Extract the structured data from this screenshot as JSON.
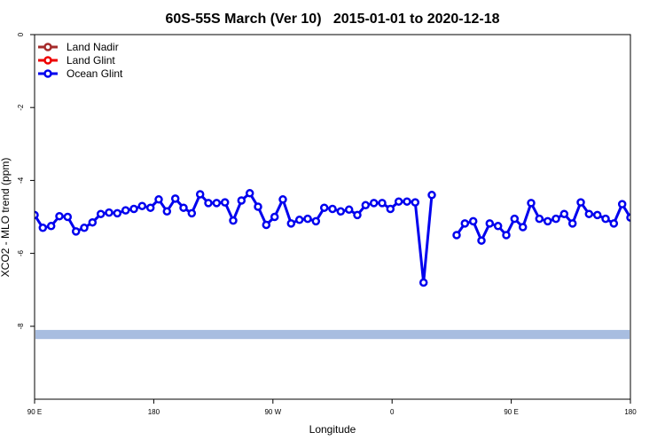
{
  "chart_data": {
    "type": "line",
    "title": "60S-55S March (Ver 10)   2015-01-01 to 2020-12-18",
    "xlabel": "Longitude",
    "ylabel": "XCO2 - MLO trend (ppm)",
    "xlim": [
      90,
      450
    ],
    "ylim": [
      -10,
      0
    ],
    "x_ticks": [
      {
        "value": 90,
        "label": "90 E"
      },
      {
        "value": 180,
        "label": "180"
      },
      {
        "value": 270,
        "label": "90 W"
      },
      {
        "value": 360,
        "label": "0"
      },
      {
        "value": 450,
        "label": "90 E"
      },
      {
        "value": 540,
        "label": "180"
      }
    ],
    "y_ticks": [
      {
        "value": 0,
        "label": "0"
      },
      {
        "value": -2,
        "label": "-2"
      },
      {
        "value": -4,
        "label": "-4"
      },
      {
        "value": -6,
        "label": "-6"
      },
      {
        "value": -8,
        "label": "-8"
      }
    ],
    "legend": {
      "position": "top-left",
      "entries": [
        {
          "name": "Land Nadir",
          "color": "#a52a2a"
        },
        {
          "name": "Land Glint",
          "color": "#ee0000"
        },
        {
          "name": "Ocean Glint",
          "color": "#0000ee"
        }
      ]
    },
    "band": {
      "y_from": -8.1,
      "y_to": -8.35,
      "color": "#a8bde0"
    },
    "series": [
      {
        "name": "Ocean Glint",
        "color": "#0000ee",
        "segments": [
          {
            "x": [
              90,
              95,
              100,
              105,
              110,
              115,
              120,
              125,
              130,
              135,
              140,
              145,
              150,
              155,
              160,
              165,
              170,
              175,
              180,
              185,
              190,
              195,
              200,
              205,
              210,
              215,
              220,
              225,
              230,
              235,
              240,
              245,
              250,
              255,
              260,
              265,
              270,
              275,
              280,
              285,
              290,
              295,
              300,
              305,
              310,
              315,
              320,
              325,
              330
            ],
            "y": [
              -4.95,
              -5.3,
              -5.25,
              -4.98,
              -5.0,
              -5.4,
              -5.3,
              -5.15,
              -4.92,
              -4.88,
              -4.9,
              -4.82,
              -4.78,
              -4.7,
              -4.75,
              -4.52,
              -4.85,
              -4.5,
              -4.75,
              -4.9,
              -4.38,
              -4.62,
              -4.62,
              -4.6,
              -5.1,
              -4.55,
              -4.35,
              -4.72,
              -5.22,
              -5.0,
              -4.52,
              -5.18,
              -5.08,
              -5.05,
              -5.12,
              -4.75,
              -4.78,
              -4.85,
              -4.8,
              -4.95,
              -4.68,
              -4.62,
              -4.62,
              -4.78,
              -4.58,
              -4.58,
              -4.6,
              -6.8,
              -4.4
            ]
          },
          {
            "x": [
              345,
              350,
              355,
              360,
              365,
              370,
              375,
              380,
              385,
              390,
              395,
              400,
              405,
              410,
              415,
              420,
              425,
              430,
              435,
              440,
              445,
              450,
              455,
              460,
              465,
              470,
              475,
              480,
              485,
              490,
              495,
              500,
              505,
              510,
              515,
              520,
              525,
              530,
              535,
              540
            ],
            "y": [
              -5.5,
              -5.18,
              -5.12,
              -5.65,
              -5.18,
              -5.25,
              -5.5,
              -5.05,
              -5.28,
              -4.62,
              -5.05,
              -5.12,
              -5.05,
              -4.92,
              -5.18,
              -4.6,
              -4.92,
              -4.95,
              -5.05,
              -5.18,
              -4.65,
              -5.02,
              -4.95,
              -5.3,
              -5.25,
              -4.98,
              -5.0,
              -5.4,
              -5.28,
              -5.15,
              -4.92,
              -4.88,
              -4.9,
              -4.82,
              -4.78,
              -4.7,
              -4.75,
              -4.52,
              -4.85,
              -4.5
            ]
          }
        ]
      }
    ]
  }
}
